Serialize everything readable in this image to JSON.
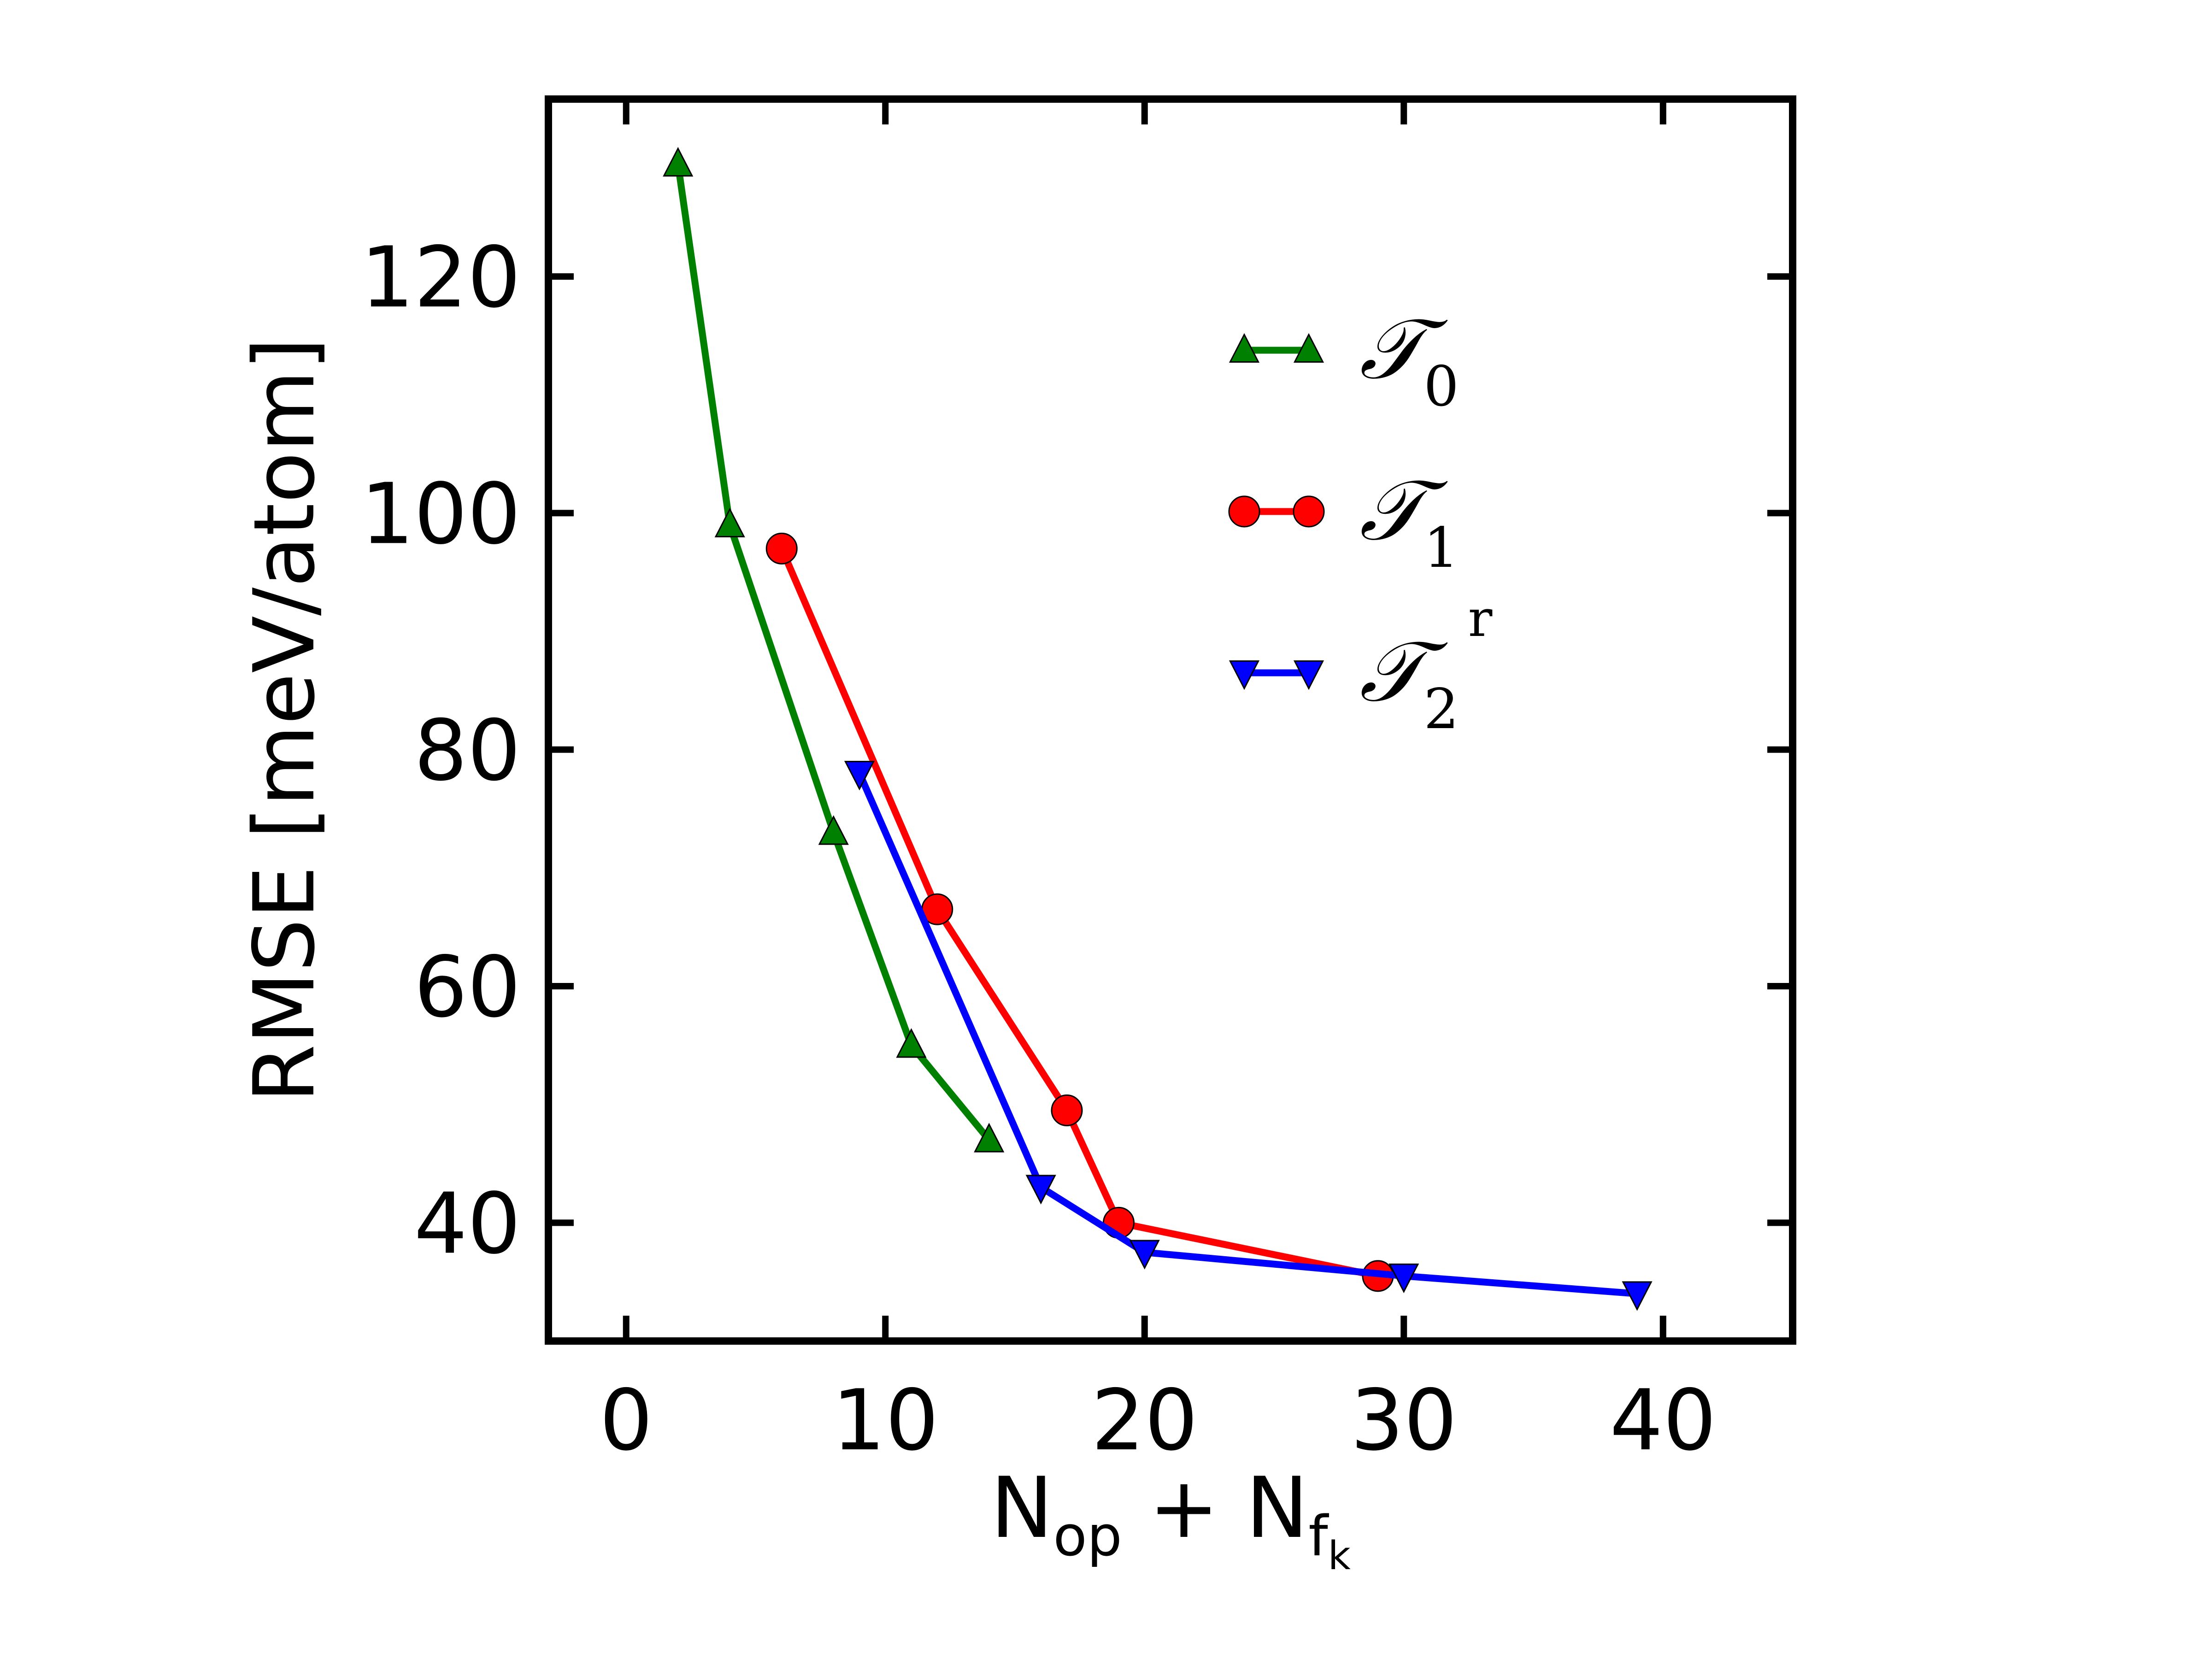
{
  "chart_data": {
    "type": "line",
    "title": "",
    "xlabel": "N_op + N_f_k",
    "xlabel_parts": {
      "main": "N",
      "sub1": "op",
      "plus": "+",
      "main2": "N",
      "sub2": "f",
      "subsub2": "k"
    },
    "ylabel": "RMSE [meV/atom]",
    "xlim": [
      -3,
      45
    ],
    "ylim": [
      30,
      135
    ],
    "xticks": [
      0,
      10,
      20,
      30,
      40
    ],
    "yticks": [
      40,
      60,
      80,
      100,
      120
    ],
    "grid": false,
    "legend_position": "upper-right",
    "series": [
      {
        "name": "T0",
        "legend_symbol": "𝒯",
        "legend_sub": "0",
        "legend_sup": "",
        "color": "#008000",
        "marker": "triangle-up",
        "x": [
          2,
          4,
          8,
          11,
          14
        ],
        "y": [
          129.5,
          99,
          73,
          55,
          47
        ]
      },
      {
        "name": "T1",
        "legend_symbol": "𝒯",
        "legend_sub": "1",
        "legend_sup": "",
        "color": "#ff0000",
        "marker": "circle",
        "x": [
          6,
          12,
          17,
          19,
          29
        ],
        "y": [
          97,
          66.5,
          49.5,
          40,
          35.5
        ]
      },
      {
        "name": "T2r",
        "legend_symbol": "𝒯",
        "legend_sub": "2",
        "legend_sup": "r",
        "color": "#0000ff",
        "marker": "triangle-down",
        "x": [
          9,
          16,
          20,
          30,
          39
        ],
        "y": [
          78,
          43,
          37.5,
          35.5,
          34
        ]
      }
    ]
  }
}
